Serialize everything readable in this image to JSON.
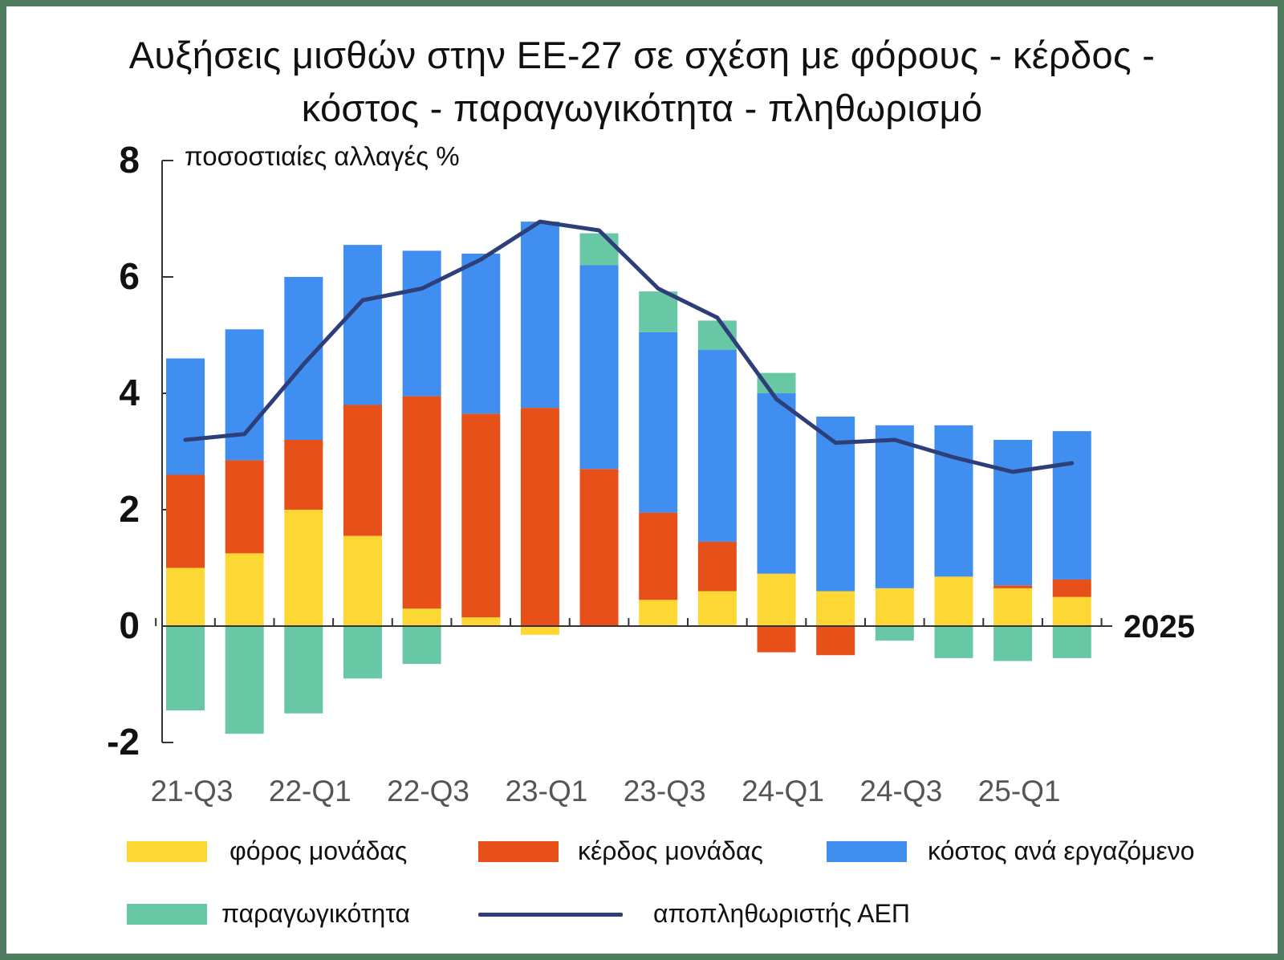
{
  "title_line1": "Αυξήσεις μισθών στην ΕΕ-27 σε σχέση με φόρους - κέρδος -",
  "title_line2": "κόστος - παραγωγικότητα - πληθωρισμό",
  "chart_data": {
    "type": "bar",
    "stacked": true,
    "ylabel": "ποσοστιαίες αλλαγές %",
    "ylim": [
      -2,
      8
    ],
    "yticks": [
      -2,
      0,
      2,
      4,
      6,
      8
    ],
    "x_end_label": "2025",
    "categories": [
      "21-Q3",
      "21-Q4",
      "22-Q1",
      "22-Q2",
      "22-Q3",
      "22-Q4",
      "23-Q1",
      "23-Q2",
      "23-Q3",
      "23-Q4",
      "24-Q1",
      "24-Q2",
      "24-Q3",
      "24-Q4",
      "25-Q1",
      "25-Q2"
    ],
    "tick_labels": [
      "21-Q3",
      "",
      "22-Q1",
      "",
      "22-Q3",
      "",
      "23-Q1",
      "",
      "23-Q3",
      "",
      "24-Q1",
      "",
      "24-Q3",
      "",
      "25-Q1",
      ""
    ],
    "series": [
      {
        "name": "φόρος μονάδας",
        "color": "#fdd835",
        "values": [
          1.0,
          1.25,
          2.0,
          1.55,
          0.3,
          0.15,
          -0.15,
          0.0,
          0.45,
          0.6,
          0.9,
          0.6,
          0.65,
          0.85,
          0.65,
          0.5
        ]
      },
      {
        "name": "κέρδος μονάδας",
        "color": "#e8501a",
        "values": [
          1.6,
          1.6,
          1.2,
          2.25,
          3.65,
          3.5,
          3.75,
          2.7,
          1.5,
          0.85,
          -0.45,
          -0.5,
          0.0,
          0.0,
          0.05,
          0.3
        ]
      },
      {
        "name": "κόστος ανά εργαζόμενο",
        "color": "#3f8ef0",
        "values": [
          2.0,
          2.25,
          2.8,
          2.75,
          2.5,
          2.75,
          3.2,
          3.5,
          3.1,
          3.3,
          3.1,
          3.0,
          2.8,
          2.6,
          2.5,
          2.55
        ]
      },
      {
        "name": "παραγωγικότητα",
        "color": "#68c7a4",
        "values": [
          -1.45,
          -1.85,
          -1.5,
          -0.9,
          -0.65,
          0.0,
          0.0,
          0.55,
          0.7,
          0.5,
          0.35,
          0.0,
          -0.25,
          -0.55,
          -0.6,
          -0.55
        ]
      }
    ],
    "line": {
      "name": "αποπληθωριστής ΑΕΠ",
      "color": "#2d3e78",
      "values": [
        3.2,
        3.3,
        4.5,
        5.6,
        5.8,
        6.3,
        6.95,
        6.8,
        5.8,
        5.3,
        3.9,
        3.15,
        3.2,
        2.9,
        2.65,
        2.8
      ]
    },
    "legend": [
      {
        "name": "φόρος μονάδας",
        "kind": "bar",
        "color": "#fdd835"
      },
      {
        "name": "κέρδος μονάδας",
        "kind": "bar",
        "color": "#e8501a"
      },
      {
        "name": "κόστος ανά εργαζόμενο",
        "kind": "bar",
        "color": "#3f8ef0"
      },
      {
        "name": "παραγωγικότητα",
        "kind": "bar",
        "color": "#68c7a4"
      },
      {
        "name": "αποπληθωριστής ΑΕΠ",
        "kind": "line",
        "color": "#2d3e78"
      }
    ],
    "legend_placement": "bottom"
  }
}
